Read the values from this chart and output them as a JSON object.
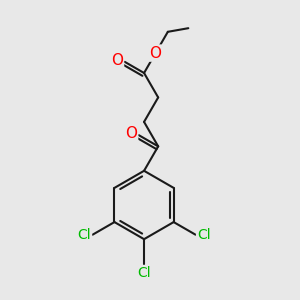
{
  "bg_color": "#e8e8e8",
  "bond_color": "#1a1a1a",
  "o_color": "#ff0000",
  "cl_color": "#00bb00",
  "lw": 1.5,
  "fs": 10,
  "fig_w": 3.0,
  "fig_h": 3.0,
  "dpi": 100,
  "xlim": [
    0,
    10
  ],
  "ylim": [
    0,
    10
  ]
}
